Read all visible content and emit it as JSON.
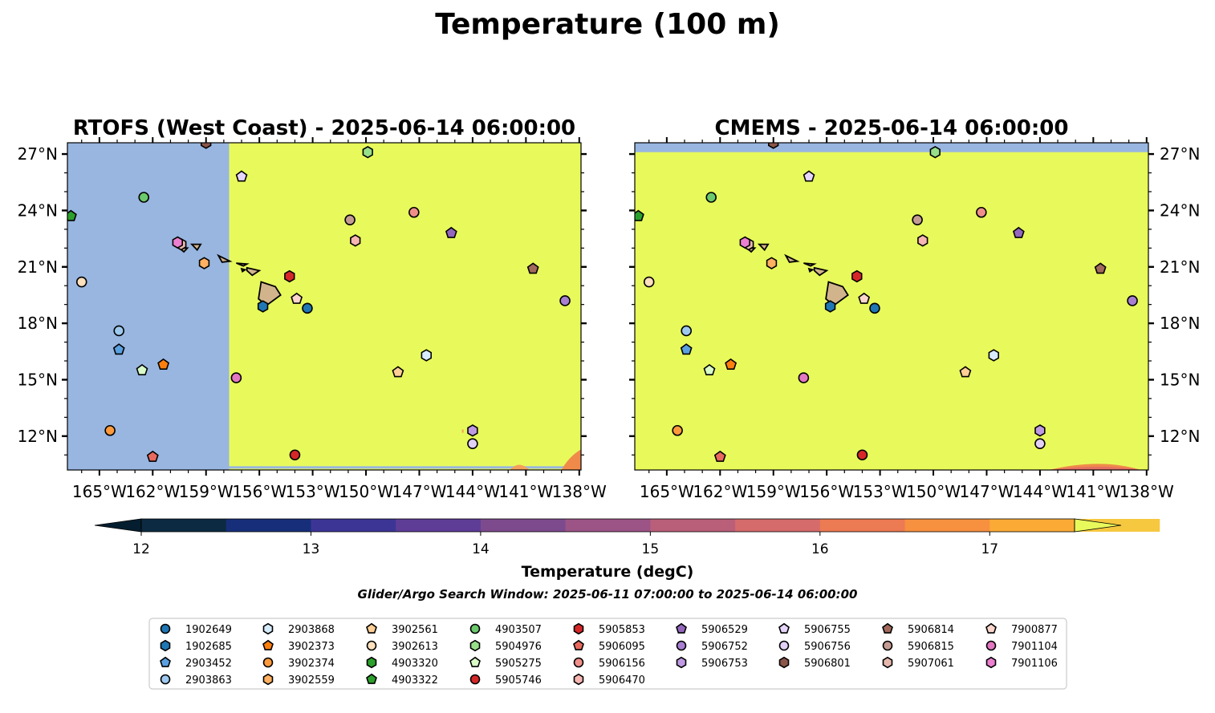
{
  "figure": {
    "suptitle": "Temperature (100 m)",
    "window_text": "Glider/Argo Search Window: 2025-06-11 07:00:00 to 2025-06-14 06:00:00"
  },
  "colorbar": {
    "label": "Temperature (degC)",
    "ticks": [
      "12",
      "13",
      "14",
      "15",
      "16",
      "17"
    ],
    "range": [
      12,
      17.5
    ],
    "step": 0.5,
    "under_color": "#041e2f",
    "over_color": "#e8fa5b",
    "colors": [
      "#0c2a41",
      "#172f7a",
      "#3c3596",
      "#5e3d97",
      "#7d4b8d",
      "#9b5485",
      "#b95f79",
      "#d56b6a",
      "#ec7a52",
      "#f7903f",
      "#fbaa36",
      "#f6c840"
    ]
  },
  "chart_data": [
    {
      "type": "map",
      "title": "RTOFS (West Coast) - 2025-06-14 06:00:00",
      "xlim": [
        -166.8,
        -137.9
      ],
      "ylim": [
        10.2,
        27.6
      ],
      "x_ticks": [
        "165°W",
        "162°W",
        "159°W",
        "156°W",
        "153°W",
        "150°W",
        "147°W",
        "144°W",
        "141°W",
        "138°W"
      ],
      "y_ticks": [
        "27°N",
        "24°N",
        "21°N",
        "18°N",
        "15°N",
        "12°N"
      ],
      "field": "mostly > 17.5 degC east of 157.7°W; no data (land-mask blue) west of 157.7°W",
      "no_data_color": "#98b6e0",
      "warm_color": "#e8fa5b",
      "land_color": "#d2b48c"
    },
    {
      "type": "map",
      "title": "CMEMS - 2025-06-14 06:00:00",
      "xlim": [
        -166.8,
        -137.9
      ],
      "ylim": [
        10.2,
        27.6
      ],
      "x_ticks": [
        "165°W",
        "162°W",
        "159°W",
        "156°W",
        "153°W",
        "150°W",
        "147°W",
        "144°W",
        "141°W",
        "138°W"
      ],
      "y_ticks": [
        "27°N",
        "24°N",
        "21°N",
        "18°N",
        "15°N",
        "12°N"
      ],
      "field": "mostly > 17.5 degC; no data north of 27.1°N",
      "no_data_color": "#98b6e0",
      "warm_color": "#e8fa5b",
      "land_color": "#d2b48c"
    }
  ],
  "floats": [
    {
      "id": "1902649",
      "marker": "circle",
      "color": "#1f77b4",
      "lon": -153.3,
      "lat": 18.8
    },
    {
      "id": "1902685",
      "marker": "hexagon",
      "color": "#1f77b4",
      "lon": -155.8,
      "lat": 18.9
    },
    {
      "id": "2903452",
      "marker": "pentagon",
      "color": "#5aa0e0",
      "lon": -163.9,
      "lat": 16.6
    },
    {
      "id": "2903863",
      "marker": "circle",
      "color": "#9ec9ef",
      "lon": -163.9,
      "lat": 17.6
    },
    {
      "id": "2903868",
      "marker": "hexagon",
      "color": "#d6ecfb",
      "lon": -146.6,
      "lat": 16.3
    },
    {
      "id": "3902373",
      "marker": "pentagon",
      "color": "#ff7f0e",
      "lon": -161.4,
      "lat": 15.8
    },
    {
      "id": "3902374",
      "marker": "circle",
      "color": "#ff9a3c",
      "lon": -164.4,
      "lat": 12.3
    },
    {
      "id": "3902559",
      "marker": "hexagon",
      "color": "#ffb060",
      "lon": -159.1,
      "lat": 21.2
    },
    {
      "id": "3902561",
      "marker": "pentagon",
      "color": "#ffcf95",
      "lon": -148.2,
      "lat": 15.4
    },
    {
      "id": "3902613",
      "marker": "circle",
      "color": "#ffe0bd",
      "lon": -166.0,
      "lat": 20.2
    },
    {
      "id": "4903507",
      "marker": "circle",
      "color": "#6cc96c",
      "lon": -162.5,
      "lat": 24.7
    },
    {
      "id": "5904976",
      "marker": "hexagon",
      "color": "#98df8a",
      "lon": -149.9,
      "lat": 27.1
    },
    {
      "id": "5905275",
      "marker": "pentagon",
      "color": "#d8fbc8",
      "lon": -162.6,
      "lat": 15.5
    },
    {
      "id": "5905746",
      "marker": "circle",
      "color": "#d62728",
      "lon": -154.0,
      "lat": 11.0
    },
    {
      "id": "4903322",
      "marker": "pentagon",
      "color": "#2ca02c",
      "lon": -166.6,
      "lat": 23.7
    },
    {
      "id": "5905853",
      "marker": "hexagon",
      "color": "#d62728",
      "lon": -154.3,
      "lat": 20.5
    },
    {
      "id": "5906095",
      "marker": "pentagon",
      "color": "#e8695d",
      "lon": -162.0,
      "lat": 10.9
    },
    {
      "id": "5906156",
      "marker": "circle",
      "color": "#f08f8a",
      "lon": -147.3,
      "lat": 23.9
    },
    {
      "id": "5906470",
      "marker": "hexagon",
      "color": "#f7b6b2",
      "lon": -150.6,
      "lat": 22.4
    },
    {
      "id": "5906529",
      "marker": "pentagon",
      "color": "#9467bd",
      "lon": -145.2,
      "lat": 22.8
    },
    {
      "id": "5906752",
      "marker": "circle",
      "color": "#a77fd1",
      "lon": -138.8,
      "lat": 19.2
    },
    {
      "id": "5906753",
      "marker": "hexagon",
      "color": "#bf9ae2",
      "lon": -144.0,
      "lat": 12.3
    },
    {
      "id": "5906755",
      "marker": "pentagon",
      "color": "#e6d6fb",
      "lon": -157.0,
      "lat": 25.8
    },
    {
      "id": "5906756",
      "marker": "circle",
      "color": "#e2d0f6",
      "lon": -144.0,
      "lat": 11.6
    },
    {
      "id": "5906801",
      "marker": "hexagon",
      "color": "#8c564b",
      "lon": -159.0,
      "lat": 27.6
    },
    {
      "id": "5906814",
      "marker": "pentagon",
      "color": "#a26a5c",
      "lon": -140.6,
      "lat": 20.9
    },
    {
      "id": "5906815",
      "marker": "circle",
      "color": "#c49c94",
      "lon": -150.9,
      "lat": 23.5
    },
    {
      "id": "5907061",
      "marker": "hexagon",
      "color": "#e6b8ad",
      "lon": -160.4,
      "lat": 22.2
    },
    {
      "id": "7900877",
      "marker": "pentagon",
      "color": "#fcd6cc",
      "lon": -153.9,
      "lat": 19.3
    },
    {
      "id": "7901104",
      "marker": "circle",
      "color": "#e377c2",
      "lon": -157.3,
      "lat": 15.1
    },
    {
      "id": "7901106",
      "marker": "hexagon",
      "color": "#ec7fcf",
      "lon": -160.6,
      "lat": 22.3
    }
  ],
  "legend": {
    "columns": [
      [
        "1902649",
        "1902685",
        "2903452",
        "2903863"
      ],
      [
        "2903868",
        "3902373",
        "3902374",
        "3902559"
      ],
      [
        "3902561",
        "3902613",
        "4903320",
        "4903322"
      ],
      [
        "4903507",
        "5904976",
        "5905275",
        "5905746"
      ],
      [
        "5905853",
        "5906095",
        "5906156",
        "5906470"
      ],
      [
        "5906529",
        "5906752",
        "5906753"
      ],
      [
        "5906755",
        "5906756",
        "5906801"
      ],
      [
        "5906814",
        "5906815",
        "5907061"
      ],
      [
        "7900877",
        "7901104",
        "7901106"
      ]
    ],
    "extra_markers": {
      "4903320": {
        "marker": "hexagon",
        "color": "#2ca02c"
      }
    }
  }
}
